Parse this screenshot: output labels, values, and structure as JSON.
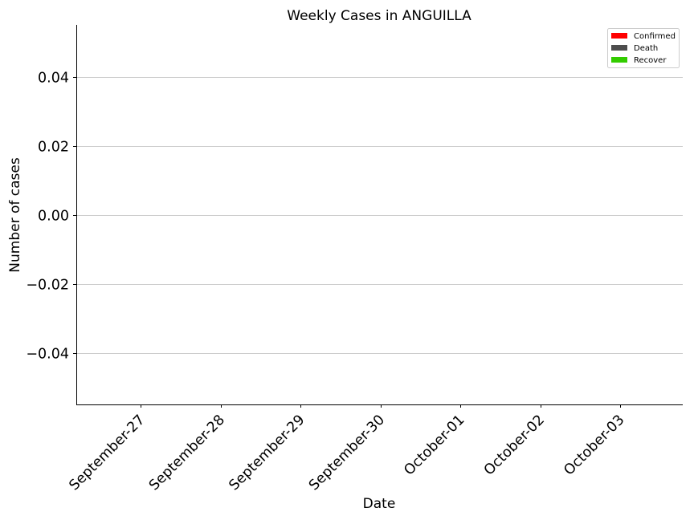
{
  "chart_data": {
    "type": "bar",
    "title": "Weekly Cases in ANGUILLA",
    "xlabel": "Date",
    "ylabel": "Number of cases",
    "categories": [
      "September-27",
      "September-28",
      "September-29",
      "September-30",
      "October-01",
      "October-02",
      "October-03"
    ],
    "series": [
      {
        "name": "Confirmed",
        "color": "#ff0000",
        "values": [
          0,
          0,
          0,
          0,
          0,
          0,
          0
        ]
      },
      {
        "name": "Death",
        "color": "#4d4d4d",
        "values": [
          0,
          0,
          0,
          0,
          0,
          0,
          0
        ]
      },
      {
        "name": "Recover",
        "color": "#33cc00",
        "values": [
          0,
          0,
          0,
          0,
          0,
          0,
          0
        ]
      }
    ],
    "ylim": [
      -0.055,
      0.055
    ],
    "yticks": [
      -0.04,
      -0.02,
      0.0,
      0.02,
      0.04
    ],
    "ytick_labels": [
      "−0.04",
      "−0.02",
      "0.00",
      "0.02",
      "0.04"
    ],
    "grid": "y",
    "legend_position": "top-right"
  }
}
